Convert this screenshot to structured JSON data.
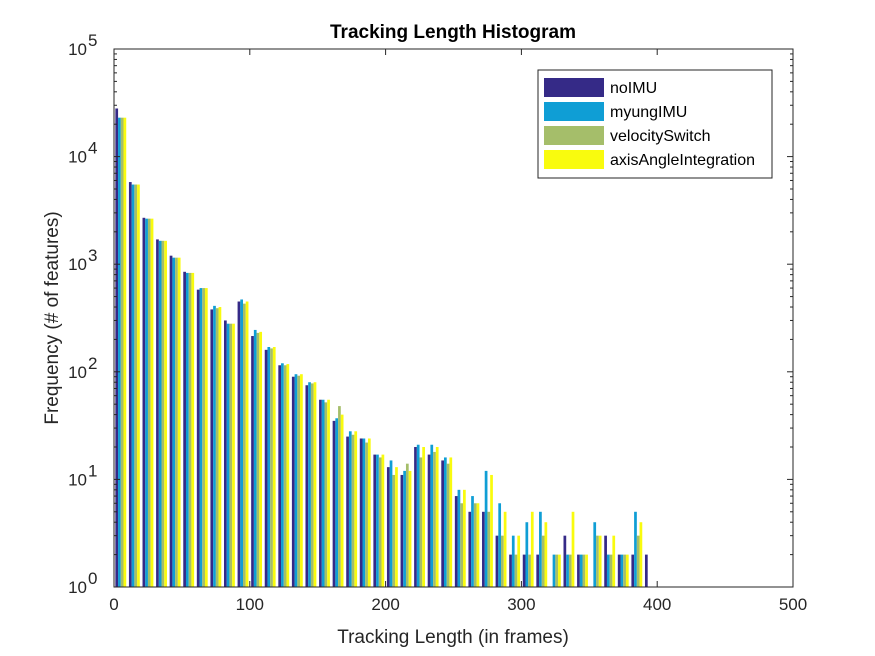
{
  "chart_data": {
    "type": "bar",
    "title": "Tracking Length Histogram",
    "xlabel": "Tracking Length (in frames)",
    "ylabel": "Frequency (# of features)",
    "xlim": [
      0,
      500
    ],
    "ylim": [
      1,
      100000
    ],
    "yscale": "log",
    "xticks": [
      0,
      100,
      200,
      300,
      400,
      500
    ],
    "yticks": [
      1,
      10,
      100,
      1000,
      10000,
      100000
    ],
    "ytick_labels": [
      {
        "base": "10",
        "exp": "0"
      },
      {
        "base": "10",
        "exp": "1"
      },
      {
        "base": "10",
        "exp": "2"
      },
      {
        "base": "10",
        "exp": "3"
      },
      {
        "base": "10",
        "exp": "4"
      },
      {
        "base": "10",
        "exp": "5"
      }
    ],
    "grid": false,
    "legend_position": "top-right",
    "bin_width": 10,
    "x": [
      5,
      15,
      25,
      35,
      45,
      55,
      65,
      75,
      85,
      95,
      105,
      115,
      125,
      135,
      145,
      155,
      165,
      175,
      185,
      195,
      205,
      215,
      225,
      235,
      245,
      255,
      265,
      275,
      285,
      295,
      305,
      315,
      325,
      335,
      345,
      355,
      365,
      375,
      385,
      395
    ],
    "series": [
      {
        "name": "noIMU",
        "color": "#352a87",
        "values": [
          28000,
          5800,
          2700,
          1700,
          1200,
          850,
          580,
          380,
          300,
          450,
          215,
          160,
          115,
          90,
          75,
          55,
          35,
          25,
          24,
          17,
          13,
          11,
          20,
          17,
          15,
          7,
          5,
          5,
          3,
          2,
          2,
          2,
          0,
          3,
          2,
          0,
          3,
          2,
          2,
          2
        ]
      },
      {
        "name": "myungIMU",
        "color": "#0f9ed5",
        "values": [
          23000,
          5500,
          2650,
          1650,
          1150,
          830,
          600,
          410,
          280,
          470,
          245,
          170,
          120,
          95,
          80,
          55,
          37,
          28,
          24,
          17,
          15,
          12,
          21,
          21,
          16,
          8,
          7,
          12,
          6,
          3,
          4,
          5,
          2,
          2,
          2,
          4,
          2,
          2,
          5,
          0
        ]
      },
      {
        "name": "velocitySwitch",
        "color": "#a5be6a",
        "values": [
          23000,
          5500,
          2650,
          1650,
          1150,
          830,
          600,
          390,
          280,
          430,
          230,
          165,
          115,
          92,
          78,
          52,
          48,
          26,
          22,
          16,
          11,
          14,
          16,
          18,
          14,
          6,
          6,
          5,
          3,
          2,
          2,
          3,
          2,
          2,
          2,
          3,
          2,
          2,
          3,
          0
        ]
      },
      {
        "name": "axisAngleIntegration",
        "color": "#f9fb0e",
        "values": [
          23000,
          5500,
          2650,
          1650,
          1150,
          830,
          600,
          400,
          280,
          450,
          235,
          170,
          118,
          95,
          80,
          55,
          40,
          28,
          24,
          17,
          13,
          12,
          20,
          20,
          16,
          8,
          6,
          11,
          5,
          3,
          5,
          4,
          2,
          5,
          2,
          3,
          3,
          2,
          4,
          0
        ]
      }
    ]
  }
}
